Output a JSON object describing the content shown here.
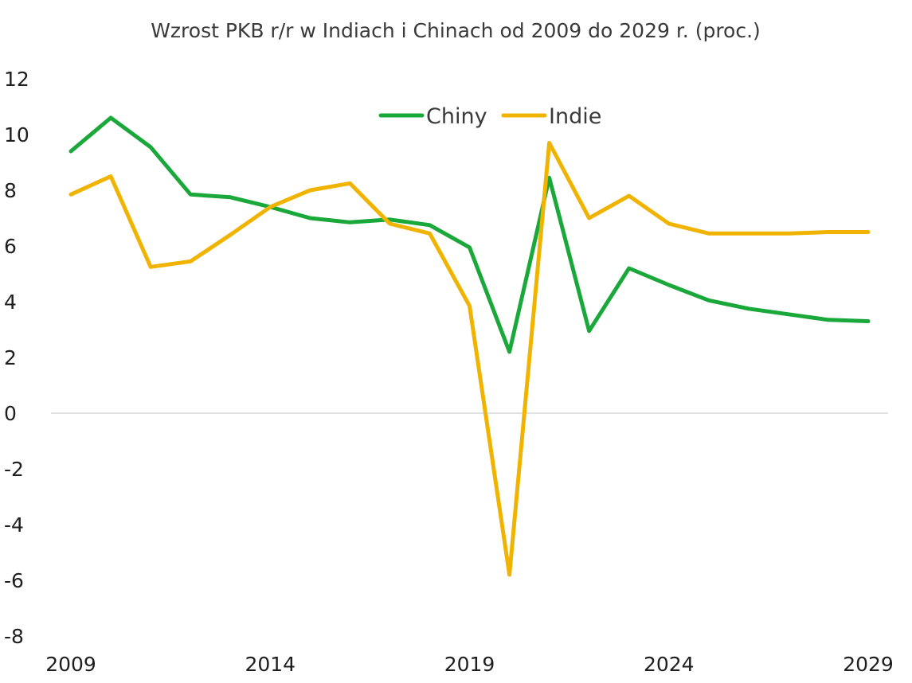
{
  "chart_data": {
    "type": "line",
    "title": "Wzrost PKB r/r w Indiach i Chinach od 2009 do 2029 r. (proc.)",
    "xlabel": "",
    "ylabel": "",
    "x": [
      2009,
      2010,
      2011,
      2012,
      2013,
      2014,
      2015,
      2016,
      2017,
      2018,
      2019,
      2020,
      2021,
      2022,
      2023,
      2024,
      2025,
      2026,
      2027,
      2028,
      2029
    ],
    "x_tick_labels": [
      "2009",
      "2014",
      "2019",
      "2024",
      "2029"
    ],
    "x_tick_values": [
      2009,
      2014,
      2019,
      2024,
      2029
    ],
    "ylim": [
      -8,
      12
    ],
    "y_tick_labels": [
      "12",
      "10",
      "8",
      "6",
      "4",
      "2",
      "0",
      "-2",
      "-4",
      "-6",
      "-8"
    ],
    "y_tick_values": [
      12,
      10,
      8,
      6,
      4,
      2,
      0,
      -2,
      -4,
      -6,
      -8
    ],
    "grid": false,
    "legend_position": "top-center",
    "series": [
      {
        "name": "Chiny",
        "color": "#1aa83a",
        "values": [
          9.4,
          10.6,
          9.55,
          7.85,
          7.75,
          7.4,
          7.0,
          6.85,
          6.95,
          6.75,
          5.95,
          2.2,
          8.45,
          2.95,
          5.2,
          4.6,
          4.05,
          3.75,
          3.55,
          3.35,
          3.3
        ]
      },
      {
        "name": "Indie",
        "color": "#f0b400",
        "values": [
          7.85,
          8.5,
          5.25,
          5.45,
          6.4,
          7.4,
          8.0,
          8.25,
          6.8,
          6.45,
          3.85,
          -5.8,
          9.7,
          7.0,
          7.8,
          6.8,
          6.45,
          6.45,
          6.45,
          6.5,
          6.5
        ]
      }
    ]
  }
}
